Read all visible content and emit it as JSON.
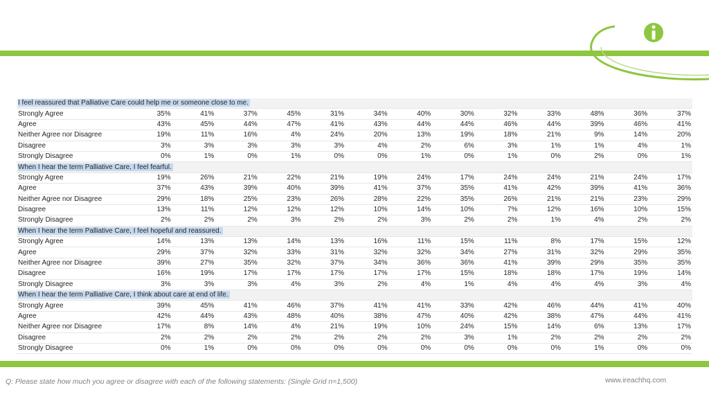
{
  "brand": {
    "accent": "#8dc63f",
    "logo_icon": "info-icon",
    "website": "www.ireachhq.com"
  },
  "footer": {
    "question": "Q: Please state how much you agree or disagree with each of the following statements: (Single Grid n=1,500)"
  },
  "sections": [
    {
      "question": "I feel reassured that Palliative Care could help me or someone close to me.",
      "rows": [
        {
          "label": "Strongly Agree",
          "values": [
            "35%",
            "41%",
            "37%",
            "45%",
            "31%",
            "34%",
            "40%",
            "30%",
            "32%",
            "33%",
            "48%",
            "36%",
            "37%"
          ]
        },
        {
          "label": "Agree",
          "values": [
            "43%",
            "45%",
            "44%",
            "47%",
            "41%",
            "43%",
            "44%",
            "44%",
            "46%",
            "44%",
            "39%",
            "46%",
            "41%"
          ]
        },
        {
          "label": "Neither Agree nor Disagree",
          "values": [
            "19%",
            "11%",
            "16%",
            "4%",
            "24%",
            "20%",
            "13%",
            "19%",
            "18%",
            "21%",
            "9%",
            "14%",
            "20%"
          ]
        },
        {
          "label": "Disagree",
          "values": [
            "3%",
            "3%",
            "3%",
            "3%",
            "3%",
            "4%",
            "2%",
            "6%",
            "3%",
            "1%",
            "1%",
            "4%",
            "1%"
          ]
        },
        {
          "label": "Strongly Disagree",
          "values": [
            "0%",
            "1%",
            "0%",
            "1%",
            "0%",
            "0%",
            "1%",
            "0%",
            "1%",
            "0%",
            "2%",
            "0%",
            "1%"
          ]
        }
      ]
    },
    {
      "question": "When I hear the term Palliative Care, I feel fearful.",
      "rows": [
        {
          "label": "Strongly Agree",
          "values": [
            "19%",
            "26%",
            "21%",
            "22%",
            "21%",
            "19%",
            "24%",
            "17%",
            "24%",
            "24%",
            "21%",
            "24%",
            "17%"
          ]
        },
        {
          "label": "Agree",
          "values": [
            "37%",
            "43%",
            "39%",
            "40%",
            "39%",
            "41%",
            "37%",
            "35%",
            "41%",
            "42%",
            "39%",
            "41%",
            "36%"
          ]
        },
        {
          "label": "Neither Agree nor Disagree",
          "values": [
            "29%",
            "18%",
            "25%",
            "23%",
            "26%",
            "28%",
            "22%",
            "35%",
            "26%",
            "21%",
            "21%",
            "23%",
            "29%"
          ]
        },
        {
          "label": "Disagree",
          "values": [
            "13%",
            "11%",
            "12%",
            "12%",
            "12%",
            "10%",
            "14%",
            "10%",
            "7%",
            "12%",
            "16%",
            "10%",
            "15%"
          ]
        },
        {
          "label": "Strongly Disagree",
          "values": [
            "2%",
            "2%",
            "2%",
            "3%",
            "2%",
            "2%",
            "3%",
            "2%",
            "2%",
            "1%",
            "4%",
            "2%",
            "2%"
          ]
        }
      ]
    },
    {
      "question": "When I hear the term Palliative Care, I feel hopeful and reassured.",
      "rows": [
        {
          "label": "Strongly Agree",
          "values": [
            "14%",
            "13%",
            "13%",
            "14%",
            "13%",
            "16%",
            "11%",
            "15%",
            "11%",
            "8%",
            "17%",
            "15%",
            "12%"
          ]
        },
        {
          "label": "Agree",
          "values": [
            "29%",
            "37%",
            "32%",
            "33%",
            "31%",
            "32%",
            "32%",
            "34%",
            "27%",
            "31%",
            "32%",
            "29%",
            "35%"
          ]
        },
        {
          "label": "Neither Agree nor Disagree",
          "values": [
            "39%",
            "27%",
            "35%",
            "32%",
            "37%",
            "34%",
            "36%",
            "36%",
            "41%",
            "39%",
            "29%",
            "35%",
            "35%"
          ]
        },
        {
          "label": "Disagree",
          "values": [
            "16%",
            "19%",
            "17%",
            "17%",
            "17%",
            "17%",
            "17%",
            "15%",
            "18%",
            "18%",
            "17%",
            "19%",
            "14%"
          ]
        },
        {
          "label": "Strongly Disagree",
          "values": [
            "3%",
            "3%",
            "3%",
            "4%",
            "3%",
            "2%",
            "4%",
            "1%",
            "4%",
            "4%",
            "4%",
            "3%",
            "4%"
          ]
        }
      ]
    },
    {
      "question": "When I hear the term Palliative Care, I think about care at end of life.",
      "rows": [
        {
          "label": "Strongly Agree",
          "values": [
            "39%",
            "45%",
            "41%",
            "46%",
            "37%",
            "41%",
            "41%",
            "33%",
            "42%",
            "46%",
            "44%",
            "41%",
            "40%"
          ]
        },
        {
          "label": "Agree",
          "values": [
            "42%",
            "44%",
            "43%",
            "48%",
            "40%",
            "38%",
            "47%",
            "40%",
            "42%",
            "38%",
            "47%",
            "44%",
            "41%"
          ]
        },
        {
          "label": "Neither Agree nor Disagree",
          "values": [
            "17%",
            "8%",
            "14%",
            "4%",
            "21%",
            "19%",
            "10%",
            "24%",
            "15%",
            "14%",
            "6%",
            "13%",
            "17%"
          ]
        },
        {
          "label": "Disagree",
          "values": [
            "2%",
            "2%",
            "2%",
            "2%",
            "2%",
            "2%",
            "2%",
            "3%",
            "1%",
            "2%",
            "2%",
            "2%",
            "2%"
          ]
        },
        {
          "label": "Strongly Disagree",
          "values": [
            "0%",
            "1%",
            "0%",
            "0%",
            "0%",
            "0%",
            "0%",
            "0%",
            "0%",
            "0%",
            "1%",
            "0%",
            "0%"
          ]
        }
      ]
    }
  ]
}
